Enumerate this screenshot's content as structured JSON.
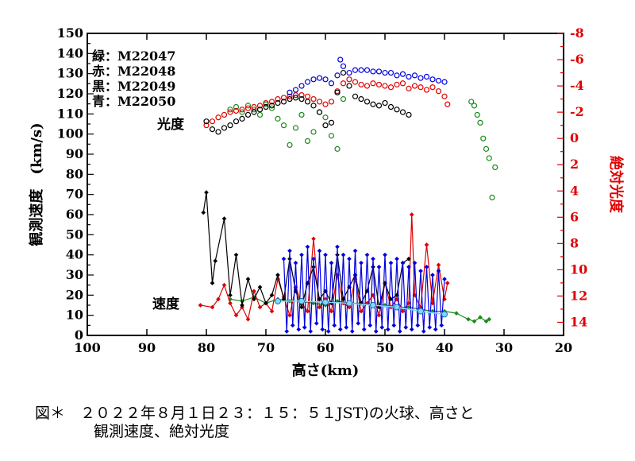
{
  "chart_data": {
    "type": "scatter",
    "xlabel": "高さ(km)",
    "ylabel_left": "観測速度　(km/s)",
    "ylabel_right": "絶対光度",
    "xlim": [
      100,
      20
    ],
    "ylim_left": [
      0,
      150
    ],
    "ylim_right": [
      -8,
      15
    ],
    "x_ticks": [
      100,
      90,
      80,
      70,
      60,
      50,
      40,
      30,
      20
    ],
    "y_left_ticks": [
      0,
      5,
      10,
      15,
      20,
      25,
      30,
      35,
      40,
      45,
      50,
      55,
      60,
      65,
      70,
      75,
      80,
      85,
      90,
      95,
      100,
      105,
      110,
      115,
      120,
      125,
      130,
      135,
      140,
      145,
      150
    ],
    "y_right_ticks": [
      -8,
      -6,
      -4,
      -2,
      0,
      2,
      4,
      6,
      8,
      10,
      12,
      14
    ],
    "annotations": {
      "brightness": "光度",
      "speed": "速度"
    },
    "legend": [
      {
        "color": "#1a8a1a",
        "label": "緑：M22047"
      },
      {
        "color": "#e00000",
        "label": "赤：M22048"
      },
      {
        "color": "#000000",
        "label": "黒：M22049"
      },
      {
        "color": "#0000dd",
        "label": "青：M22050"
      }
    ],
    "brightness_series": [
      {
        "name": "緑：M22047",
        "color": "#1a8a1a",
        "x": [
          76,
          75,
          74,
          73,
          72,
          71,
          70,
          69,
          68,
          67,
          66,
          65,
          64,
          63,
          62,
          61,
          60,
          59,
          58,
          57,
          35.5,
          35,
          34.5,
          34,
          33.5,
          33,
          32.5,
          32,
          31.5
        ],
        "y": [
          -2.2,
          -2.4,
          -2.0,
          -2.5,
          -2.2,
          -1.8,
          -2.6,
          -2.3,
          -1.5,
          -1.0,
          0.5,
          -0.8,
          -1.8,
          0.2,
          -0.5,
          -2.0,
          -1.6,
          -0.2,
          0.8,
          -3.0,
          -2.8,
          -2.5,
          -1.8,
          -1.2,
          0.0,
          0.8,
          1.5,
          4.5,
          2.2
        ]
      },
      {
        "name": "赤：M22048",
        "color": "#e00000",
        "x": [
          80,
          79,
          78,
          77,
          76,
          75,
          74,
          73,
          72,
          71,
          70,
          69,
          68,
          67,
          66,
          65,
          64,
          63,
          62,
          61,
          60,
          59,
          58,
          57,
          56,
          55,
          54,
          53,
          52,
          51,
          50,
          49,
          48,
          47,
          46,
          45,
          44,
          43,
          42,
          41,
          40,
          39.5
        ],
        "y": [
          -1.0,
          -1.3,
          -1.6,
          -1.8,
          -2.0,
          -2.1,
          -2.2,
          -2.3,
          -2.4,
          -2.5,
          -2.7,
          -2.8,
          -3.0,
          -3.1,
          -3.2,
          -3.3,
          -3.3,
          -3.2,
          -3.0,
          -2.8,
          -2.6,
          -2.8,
          -3.6,
          -4.2,
          -4.5,
          -4.3,
          -4.1,
          -4.0,
          -4.2,
          -4.1,
          -4.0,
          -3.9,
          -4.1,
          -4.2,
          -3.8,
          -4.0,
          -3.9,
          -3.7,
          -3.9,
          -3.6,
          -3.2,
          -2.6
        ]
      },
      {
        "name": "黒：M22049",
        "color": "#000000",
        "x": [
          80,
          79,
          78,
          77,
          76,
          75,
          74,
          73,
          72,
          71,
          70,
          69,
          68,
          67,
          66,
          65,
          64,
          63,
          62,
          61,
          60,
          59,
          58,
          57,
          56,
          55,
          54,
          53,
          52,
          51,
          50,
          49,
          48,
          47,
          46
        ],
        "y": [
          -1.3,
          -0.7,
          -0.5,
          -0.8,
          -1.0,
          -1.3,
          -1.5,
          -1.8,
          -2.0,
          -2.2,
          -2.4,
          -2.5,
          -2.7,
          -2.8,
          -3.0,
          -3.1,
          -3.0,
          -2.8,
          -2.5,
          -2.0,
          -1.0,
          -1.2,
          -3.5,
          -5.0,
          -4.0,
          -3.2,
          -3.0,
          -2.8,
          -2.6,
          -2.5,
          -2.7,
          -2.4,
          -2.2,
          -2.0,
          -1.8
        ]
      },
      {
        "name": "青：M22050",
        "color": "#0000dd",
        "x": [
          66,
          65,
          64,
          63,
          62,
          61,
          60,
          59,
          58,
          57.5,
          57,
          56,
          55,
          54,
          53,
          52,
          51,
          50,
          49,
          48,
          47,
          46,
          45,
          44,
          43,
          42,
          41,
          40
        ],
        "y": [
          -3.5,
          -3.7,
          -4.0,
          -4.3,
          -4.5,
          -4.6,
          -4.5,
          -4.2,
          -4.8,
          -6.0,
          -5.5,
          -5.0,
          -5.2,
          -5.2,
          -5.2,
          -5.1,
          -5.1,
          -5.0,
          -5.0,
          -4.8,
          -4.9,
          -4.7,
          -4.8,
          -4.6,
          -4.7,
          -4.5,
          -4.4,
          -4.3
        ]
      }
    ],
    "speed_series": [
      {
        "name": "緑：M22047",
        "color": "#1a8a1a",
        "x": [
          76,
          74,
          72,
          70,
          68,
          66,
          64,
          62,
          60,
          58,
          56,
          54,
          52,
          50,
          48,
          46,
          44,
          42,
          40,
          38,
          36,
          35,
          34,
          33,
          32.5
        ],
        "y": [
          18,
          17,
          19,
          16,
          18,
          17,
          17,
          16,
          15,
          17,
          16,
          16,
          15,
          15,
          14,
          14,
          13,
          12,
          12,
          11,
          8,
          7,
          9,
          7,
          8
        ]
      },
      {
        "name": "赤：M22048",
        "color": "#e00000",
        "x": [
          81,
          79,
          78,
          77,
          76,
          75,
          74,
          73,
          72,
          71,
          70,
          69,
          68,
          67,
          66,
          65,
          64,
          63,
          62,
          61,
          60,
          59,
          58,
          57,
          56,
          55,
          54,
          53,
          52,
          51,
          50,
          49,
          48,
          47,
          46,
          45.5,
          45,
          44,
          43,
          42,
          41,
          40,
          39.5
        ],
        "y": [
          15,
          14,
          18,
          25,
          16,
          10,
          14,
          8,
          22,
          14,
          16,
          12,
          28,
          19,
          10,
          24,
          16,
          12,
          48,
          14,
          18,
          12,
          30,
          16,
          14,
          28,
          12,
          16,
          20,
          10,
          26,
          14,
          18,
          12,
          16,
          60,
          20,
          14,
          45,
          16,
          35,
          18,
          26
        ]
      },
      {
        "name": "黒：M22049",
        "color": "#000000",
        "x": [
          80.5,
          80,
          79,
          78.5,
          77,
          76,
          75,
          74,
          73,
          72,
          71,
          70,
          69,
          68,
          67,
          66,
          65,
          64,
          63,
          62,
          61,
          60,
          59,
          58,
          57,
          56,
          55,
          54,
          53,
          52,
          51,
          50,
          49,
          48,
          47,
          46
        ],
        "y": [
          61,
          71,
          26,
          37,
          58,
          20,
          40,
          15,
          28,
          18,
          24,
          16,
          20,
          30,
          18,
          38,
          22,
          14,
          26,
          34,
          18,
          22,
          16,
          40,
          18,
          24,
          30,
          16,
          22,
          34,
          14,
          26,
          18,
          20,
          36,
          38
        ]
      },
      {
        "name": "青：M22050",
        "color": "#0000dd",
        "x": [
          67,
          66.5,
          66,
          65.5,
          65,
          64.5,
          64,
          63.5,
          63,
          62.5,
          62,
          61.5,
          61,
          60.5,
          60,
          59.5,
          59,
          58.5,
          58,
          57.5,
          57,
          56.5,
          56,
          55.5,
          55,
          54.5,
          54,
          53.5,
          53,
          52.5,
          52,
          51.5,
          51,
          50.5,
          50,
          49.5,
          49,
          48.5,
          48,
          47.5,
          47,
          46.5,
          46,
          45.5,
          45,
          44.5,
          44,
          43.5,
          43,
          42.5,
          42,
          41.5,
          41,
          40.5,
          40
        ],
        "y": [
          38,
          2,
          42,
          5,
          36,
          3,
          40,
          4,
          44,
          2,
          38,
          6,
          42,
          3,
          40,
          2,
          36,
          5,
          44,
          3,
          40,
          4,
          38,
          2,
          42,
          6,
          36,
          3,
          40,
          5,
          38,
          2,
          34,
          4,
          40,
          3,
          36,
          5,
          38,
          2,
          36,
          4,
          34,
          3,
          36,
          5,
          32,
          2,
          34,
          4,
          30,
          3,
          32,
          5,
          28
        ]
      },
      {
        "name": "fit",
        "color": "#7fd8ff",
        "x": [
          68,
          64,
          60,
          56,
          52,
          48,
          44,
          40
        ],
        "y": [
          17,
          17,
          16.5,
          16,
          15,
          14,
          12,
          10.5
        ]
      }
    ]
  },
  "caption": {
    "line1": "図＊　２０２２年８月１日２３：１５：５１JST)の火球、高さと",
    "line2": "観測速度、絶対光度"
  }
}
